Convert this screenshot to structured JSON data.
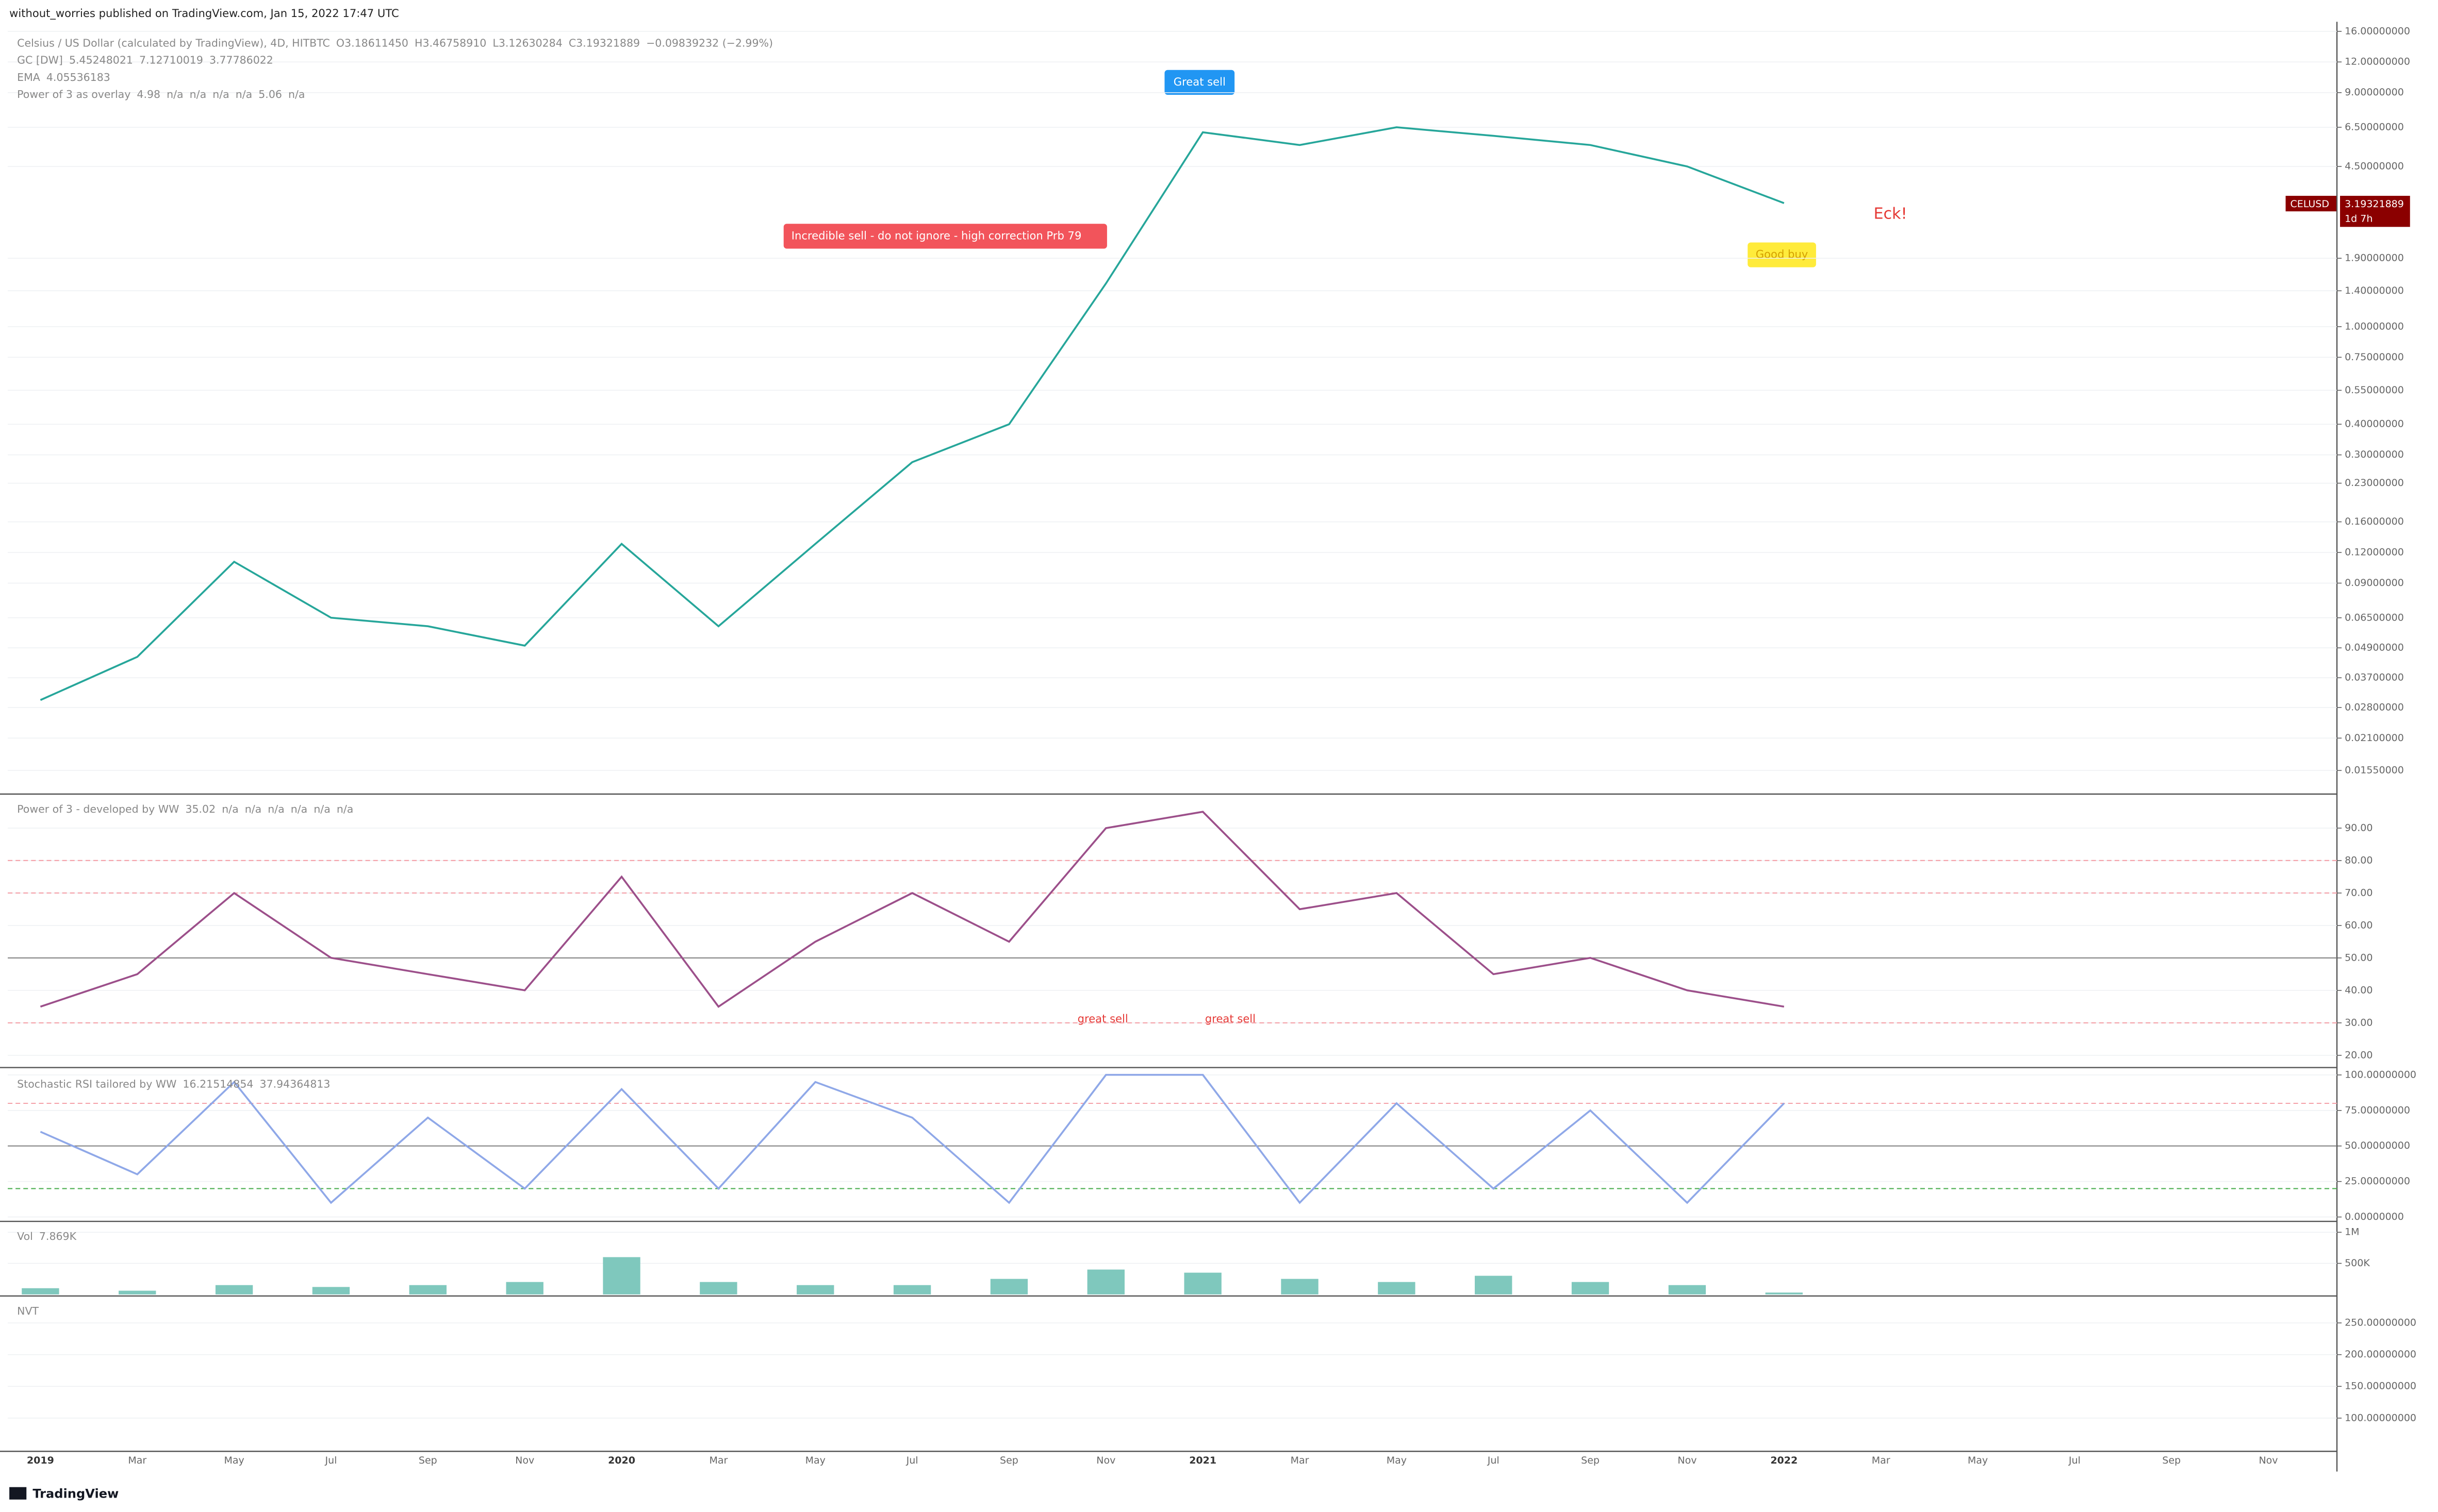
{
  "header": {
    "publisher": "without_worries published on TradingView.com, Jan 15, 2022 17:47 UTC"
  },
  "footer": {
    "brand": "TradingView"
  },
  "chart_data": [
    {
      "type": "line",
      "log": true,
      "legend": [
        [
          "Celsius / US Dollar (calculated by TradingView), 4D, HITBTC",
          "O3.18611450",
          "H3.46758910",
          "L3.12630284",
          "C3.19321889",
          "−0.09839232 (−2.99%)"
        ],
        [
          "GC [DW]",
          "5.45248021",
          "7.12710019",
          "3.77786022"
        ],
        [
          "EMA",
          "4.05536183"
        ],
        [
          "Power of 3 as overlay",
          "4.98",
          "n/a",
          "n/a",
          "n/a",
          "n/a",
          "5.06",
          "n/a"
        ]
      ],
      "categories": [
        "2019",
        "Mar",
        "May",
        "Jul",
        "Sep",
        "Nov",
        "2020",
        "Mar",
        "May",
        "Jul",
        "Sep",
        "Nov",
        "2021",
        "Mar",
        "May",
        "Jul",
        "Sep",
        "Nov",
        "2022",
        "Mar",
        "May",
        "Jul",
        "Sep",
        "Nov"
      ],
      "series": [
        {
          "color": "#26a69a",
          "values": [
            0.03,
            0.045,
            0.11,
            0.065,
            0.06,
            0.05,
            0.13,
            0.06,
            0.13,
            0.28,
            0.4,
            1.5,
            6.2,
            5.5,
            6.5,
            6.0,
            5.5,
            4.5,
            3.19,
            null,
            null,
            null,
            null,
            null
          ]
        }
      ],
      "ylim": [
        0.0126,
        17.5
      ],
      "yticks": [
        {
          "value": 0.0155,
          "label": "0.01550000"
        },
        {
          "value": 0.021,
          "label": "0.02100000"
        },
        {
          "value": 0.028,
          "label": "0.02800000"
        },
        {
          "value": 0.037,
          "label": "0.03700000"
        },
        {
          "value": 0.049,
          "label": "0.04900000"
        },
        {
          "value": 0.065,
          "label": "0.06500000"
        },
        {
          "value": 0.09,
          "label": "0.09000000"
        },
        {
          "value": 0.12,
          "label": "0.12000000"
        },
        {
          "value": 0.16,
          "label": "0.16000000"
        },
        {
          "value": 0.23,
          "label": "0.23000000"
        },
        {
          "value": 0.3,
          "label": "0.30000000"
        },
        {
          "value": 0.4,
          "label": "0.40000000"
        },
        {
          "value": 0.55,
          "label": "0.55000000"
        },
        {
          "value": 0.75,
          "label": "0.75000000"
        },
        {
          "value": 1,
          "label": "1.00000000"
        },
        {
          "value": 1.4,
          "label": "1.40000000"
        },
        {
          "value": 1.9,
          "label": "1.90000000"
        },
        {
          "value": 4.5,
          "label": "4.50000000"
        },
        {
          "value": 6.5,
          "label": "6.50000000"
        },
        {
          "value": 9,
          "label": "9.00000000"
        },
        {
          "value": 12,
          "label": "12.00000000"
        },
        {
          "value": 16,
          "label": "16.00000000"
        }
      ],
      "annotations": [
        "Great sell",
        "Incredible sell - do not ignore - high correction Prb   79",
        "Good buy",
        "Eck!"
      ],
      "price_label": [
        "CELUSD",
        "3.19321889",
        "1d 7h"
      ]
    },
    {
      "type": "line",
      "legend": [
        [
          "Power of 3 - developed by WW",
          "35.02",
          "n/a",
          "n/a",
          "n/a",
          "n/a",
          "n/a",
          "n/a"
        ]
      ],
      "series": [
        {
          "color": "#9c4f8a",
          "values": [
            35,
            45,
            70,
            50,
            45,
            40,
            75,
            35,
            55,
            70,
            55,
            90,
            95,
            65,
            70,
            45,
            50,
            40,
            35,
            null,
            null,
            null,
            null,
            null
          ]
        }
      ],
      "ylim": [
        16.7,
        100
      ],
      "yticks": [
        {
          "value": 20,
          "label": "20.00"
        },
        {
          "value": 30,
          "label": "30.00"
        },
        {
          "value": 40,
          "label": "40.00"
        },
        {
          "value": 50,
          "label": "50.00"
        },
        {
          "value": 60,
          "label": "60.00"
        },
        {
          "value": 70,
          "label": "70.00"
        },
        {
          "value": 80,
          "label": "80.00"
        },
        {
          "value": 90,
          "label": "90.00"
        }
      ],
      "levels": [
        80,
        70,
        50,
        30
      ],
      "annotations": [
        "great sell",
        "great sell"
      ]
    },
    {
      "type": "line",
      "legend": [
        [
          "Stochastic RSI tailored by WW",
          "16.21514854",
          "37.94364813"
        ]
      ],
      "series": [
        {
          "color": "#8fa8e8",
          "values": [
            60,
            30,
            95,
            10,
            70,
            20,
            90,
            20,
            95,
            70,
            10,
            100,
            100,
            10,
            80,
            20,
            75,
            10,
            80,
            null,
            null,
            null,
            null,
            null
          ]
        }
      ],
      "ylim": [
        -2,
        103
      ],
      "yticks": [
        {
          "value": 0,
          "label": "0.00000000"
        },
        {
          "value": 25,
          "label": "25.00000000"
        },
        {
          "value": 50,
          "label": "50.00000000"
        },
        {
          "value": 75,
          "label": "75.00000000"
        },
        {
          "value": 100,
          "label": "100.00000000"
        }
      ],
      "levels": [
        80,
        50,
        20
      ]
    },
    {
      "type": "bar",
      "legend": [
        [
          "Vol",
          "7.869K"
        ]
      ],
      "series": [
        {
          "color": "#7fc8bd",
          "values": [
            100000,
            60000,
            150000,
            120000,
            150000,
            200000,
            600000,
            200000,
            150000,
            150000,
            250000,
            400000,
            350000,
            250000,
            200000,
            300000,
            200000,
            150000,
            30000,
            null,
            null,
            null,
            null,
            null
          ]
        }
      ],
      "ylim": [
        0,
        1150000
      ],
      "yticks": [
        {
          "value": 500000,
          "label": "500K"
        },
        {
          "value": 1000000,
          "label": "1M"
        }
      ]
    },
    {
      "type": "line",
      "legend": [
        [
          "NVT"
        ]
      ],
      "series": [],
      "ylim": [
        50,
        290
      ],
      "yticks": [
        {
          "value": 100,
          "label": "100.00000000"
        },
        {
          "value": 150,
          "label": "150.00000000"
        },
        {
          "value": 200,
          "label": "200.00000000"
        },
        {
          "value": 250,
          "label": "250.00000000"
        }
      ]
    }
  ]
}
